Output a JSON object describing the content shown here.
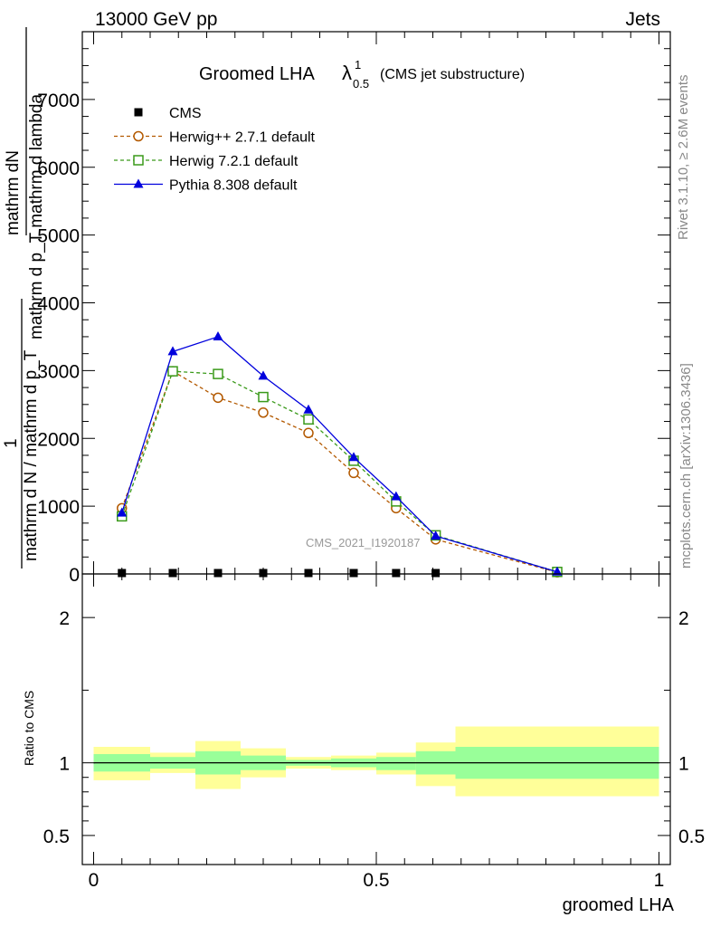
{
  "header": {
    "left": "13000 GeV pp",
    "right": "Jets"
  },
  "side": {
    "rivet": "Rivet 3.1.10, ≥ 2.6M events",
    "mcplots": "mcplots.cern.ch [arXiv:1306.3436]"
  },
  "watermark": "CMS_2021_I1920187",
  "chart_data": [
    {
      "type": "line",
      "title_main": "Groomed LHA",
      "title_lambda": "λ",
      "title_sup": "1",
      "title_sub": "0.5",
      "title_suffix": "(CMS jet substructure)",
      "ylabel_lines": [
        "mathrm dN",
        "mathrm d p_T mathrm d lambda",
        "1",
        "mathrm d N / mathrm d p_T"
      ],
      "ylim": [
        0,
        8000
      ],
      "yticks": [
        {
          "v": 0,
          "label": "0"
        },
        {
          "v": 1000,
          "label": "1000"
        },
        {
          "v": 2000,
          "label": "2000"
        },
        {
          "v": 3000,
          "label": "3000"
        },
        {
          "v": 4000,
          "label": "4000"
        },
        {
          "v": 5000,
          "label": "5000"
        },
        {
          "v": 6000,
          "label": "6000"
        },
        {
          "v": 7000,
          "label": "7000"
        }
      ],
      "legend_position": "top-left",
      "x": [
        0.05,
        0.14,
        0.22,
        0.3,
        0.38,
        0.46,
        0.535,
        0.605,
        0.82
      ],
      "series": [
        {
          "name": "CMS",
          "color": "#000000",
          "marker": "square-filled",
          "dash": "none",
          "values": [
            0,
            0,
            0,
            0,
            0,
            0,
            0,
            0,
            0
          ]
        },
        {
          "name": "Herwig++ 2.7.1 default",
          "color": "#b35900",
          "marker": "circle-open",
          "dash": "4,3",
          "values": [
            970,
            2990,
            2600,
            2380,
            2080,
            1490,
            970,
            510,
            25
          ]
        },
        {
          "name": "Herwig 7.2.1 default",
          "color": "#3a9a1a",
          "marker": "square-open",
          "dash": "4,3",
          "values": [
            850,
            2990,
            2950,
            2610,
            2280,
            1670,
            1070,
            570,
            30
          ]
        },
        {
          "name": "Pythia 8.308 default",
          "color": "#0000dd",
          "marker": "triangle-filled",
          "dash": "none",
          "values": [
            900,
            3280,
            3500,
            2920,
            2420,
            1720,
            1140,
            560,
            30
          ]
        }
      ]
    },
    {
      "type": "area",
      "ylabel": "Ratio to CMS",
      "xlabel": "groomed LHA",
      "xlim": [
        -0.02,
        1.02
      ],
      "xticks": [
        {
          "v": 0,
          "label": "0"
        },
        {
          "v": 0.5,
          "label": "0.5"
        },
        {
          "v": 1,
          "label": "1"
        }
      ],
      "ylim": [
        0.3,
        2.3
      ],
      "yticks": [
        {
          "v": 0.5,
          "label": "0.5"
        },
        {
          "v": 1,
          "label": "1"
        },
        {
          "v": 2,
          "label": "2"
        }
      ],
      "bins": [
        {
          "lo": 0.0,
          "hi": 0.1,
          "g": [
            0.94,
            1.06
          ],
          "y": [
            0.88,
            1.11
          ]
        },
        {
          "lo": 0.1,
          "hi": 0.18,
          "g": [
            0.96,
            1.04
          ],
          "y": [
            0.93,
            1.07
          ]
        },
        {
          "lo": 0.18,
          "hi": 0.26,
          "g": [
            0.92,
            1.08
          ],
          "y": [
            0.82,
            1.15
          ]
        },
        {
          "lo": 0.26,
          "hi": 0.34,
          "g": [
            0.95,
            1.05
          ],
          "y": [
            0.9,
            1.1
          ]
        },
        {
          "lo": 0.34,
          "hi": 0.42,
          "g": [
            0.98,
            1.02
          ],
          "y": [
            0.96,
            1.04
          ]
        },
        {
          "lo": 0.42,
          "hi": 0.5,
          "g": [
            0.97,
            1.03
          ],
          "y": [
            0.95,
            1.05
          ]
        },
        {
          "lo": 0.5,
          "hi": 0.57,
          "g": [
            0.95,
            1.04
          ],
          "y": [
            0.92,
            1.07
          ]
        },
        {
          "lo": 0.57,
          "hi": 0.64,
          "g": [
            0.92,
            1.08
          ],
          "y": [
            0.84,
            1.14
          ]
        },
        {
          "lo": 0.64,
          "hi": 1.0,
          "g": [
            0.89,
            1.11
          ],
          "y": [
            0.77,
            1.25
          ]
        }
      ],
      "reference": 1,
      "colors": {
        "green": "#99ff99",
        "yellow": "#ffff99"
      }
    }
  ]
}
